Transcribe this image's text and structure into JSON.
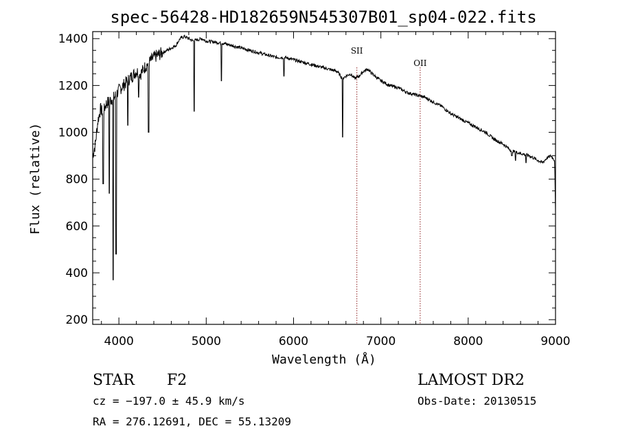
{
  "chart_data": {
    "type": "line",
    "title": "spec-56428-HD182659N545307B01_sp04-022.fits",
    "xlabel": "Wavelength (Å)",
    "ylabel": "Flux (relative)",
    "xlim": [
      3700,
      9000
    ],
    "ylim": [
      180,
      1430
    ],
    "x_ticks": [
      4000,
      5000,
      6000,
      7000,
      8000,
      9000
    ],
    "y_ticks": [
      200,
      400,
      600,
      800,
      1000,
      1200,
      1400
    ],
    "grid": false,
    "series": [
      {
        "x": [
          3700,
          3730,
          3760,
          3790,
          3820,
          3850,
          3880,
          3910,
          3950,
          4000,
          4050,
          4100,
          4150,
          4200,
          4250,
          4300,
          4350,
          4400,
          4450,
          4500,
          4550,
          4600,
          4650,
          4700,
          4750,
          4800,
          4850,
          4900,
          4950,
          5000,
          5100,
          5200,
          5300,
          5400,
          5500,
          5600,
          5700,
          5800,
          5900,
          6000,
          6100,
          6200,
          6300,
          6400,
          6500,
          6560,
          6600,
          6650,
          6700,
          6750,
          6800,
          6850,
          6900,
          7000,
          7100,
          7200,
          7300,
          7400,
          7500,
          7600,
          7700,
          7800,
          7900,
          8000,
          8100,
          8200,
          8300,
          8400,
          8500,
          8600,
          8700,
          8800,
          8850,
          8900,
          8950,
          8990,
          9000
        ],
        "y": [
          900,
          950,
          1050,
          1100,
          1080,
          1120,
          1130,
          1140,
          1150,
          1180,
          1200,
          1220,
          1240,
          1260,
          1250,
          1280,
          1300,
          1320,
          1330,
          1340,
          1350,
          1360,
          1370,
          1400,
          1410,
          1400,
          1390,
          1395,
          1400,
          1390,
          1385,
          1380,
          1370,
          1360,
          1350,
          1340,
          1330,
          1320,
          1320,
          1310,
          1300,
          1290,
          1280,
          1270,
          1260,
          1230,
          1240,
          1250,
          1230,
          1240,
          1260,
          1270,
          1250,
          1220,
          1200,
          1190,
          1170,
          1160,
          1150,
          1130,
          1110,
          1080,
          1060,
          1040,
          1020,
          1000,
          970,
          950,
          920,
          910,
          900,
          880,
          870,
          890,
          900,
          880,
          650
        ]
      }
    ],
    "absorption_lines": [
      {
        "x": 3820,
        "y": 780
      },
      {
        "x": 3890,
        "y": 740
      },
      {
        "x": 3934,
        "y": 370
      },
      {
        "x": 3968,
        "y": 480
      },
      {
        "x": 4101,
        "y": 1030
      },
      {
        "x": 4226,
        "y": 1150
      },
      {
        "x": 4340,
        "y": 1000
      },
      {
        "x": 4861,
        "y": 1090
      },
      {
        "x": 5175,
        "y": 1220
      },
      {
        "x": 5890,
        "y": 1240
      },
      {
        "x": 6563,
        "y": 980
      },
      {
        "x": 8500,
        "y": 900
      },
      {
        "x": 8542,
        "y": 880
      },
      {
        "x": 8662,
        "y": 870
      }
    ],
    "reference_lines": [
      {
        "label": "SII",
        "x": 6725
      },
      {
        "label": "OII",
        "x": 7450
      }
    ]
  },
  "info": {
    "object_type": "STAR",
    "subclass": "F2",
    "redshift_text": "cz = −197.0 ± 45.9 km/s",
    "coords_text": "RA = 276.12691, DEC =  55.13209",
    "survey": "LAMOST DR2",
    "obs_date": "Obs-Date: 20130515"
  }
}
